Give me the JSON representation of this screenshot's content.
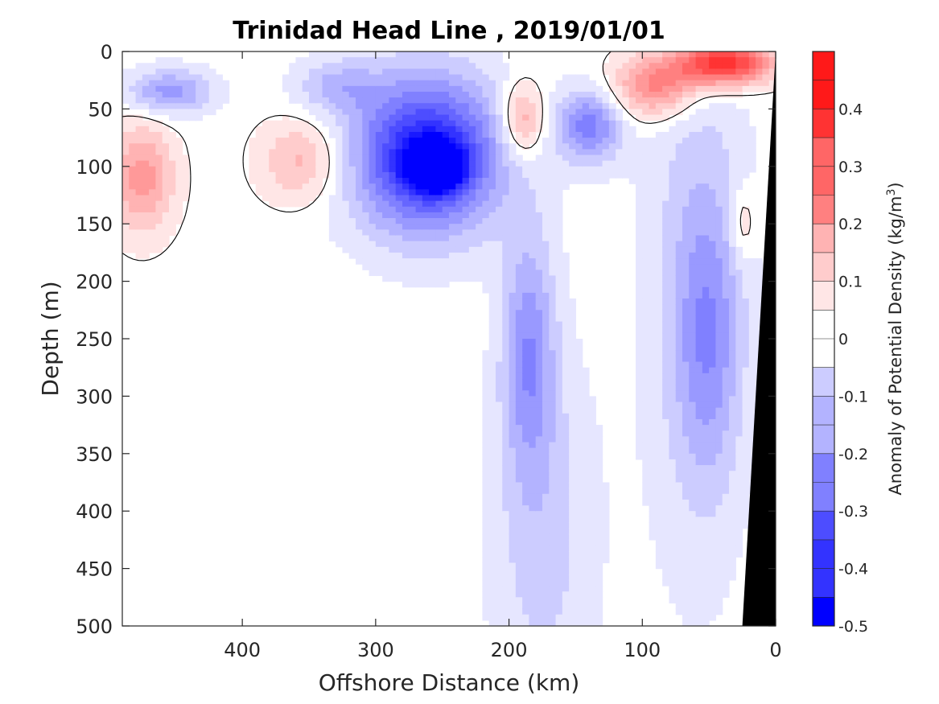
{
  "chart_data": {
    "type": "heatmap",
    "title": "Trinidad Head Line , 2019/01/01",
    "xlabel": "Offshore Distance (km)",
    "ylabel": "Depth (m)",
    "xlim": [
      490,
      0
    ],
    "ylim": [
      0,
      500
    ],
    "x_reversed": true,
    "y_reversed": true,
    "x_ticks": [
      400,
      300,
      200,
      100,
      0
    ],
    "y_ticks": [
      0,
      50,
      100,
      150,
      200,
      250,
      300,
      350,
      400,
      450,
      500
    ],
    "x_tick_labels": [
      "400",
      "300",
      "200",
      "100",
      "0"
    ],
    "y_tick_labels": [
      "0",
      "50",
      "100",
      "150",
      "200",
      "250",
      "300",
      "350",
      "400",
      "450",
      "500"
    ],
    "colorbar": {
      "label": "Anomaly of Potential Density (kg/m³)",
      "label_main": "Anomaly of Potential Density (kg/m",
      "label_sup": "3",
      "label_close": ")",
      "range": [
        -0.5,
        0.5
      ],
      "step": 0.05,
      "tick_values": [
        0.4,
        0.3,
        0.2,
        0.1,
        0,
        -0.1,
        -0.2,
        -0.3,
        -0.4,
        -0.5
      ],
      "tick_labels": [
        "0.4",
        "0.3",
        "0.2",
        "0.1",
        "0",
        "-0.1",
        "-0.2",
        "-0.3",
        "-0.4",
        "-0.5"
      ],
      "low_color": "#0000ff",
      "mid_color": "#ffffff",
      "high_color": "#ff0000"
    },
    "zero_contour": true,
    "bathymetry_color": "#000000",
    "bathymetry": [
      [
        0,
        0
      ],
      [
        25,
        500
      ],
      [
        0,
        500
      ]
    ],
    "anomaly_features": [
      {
        "x": 262,
        "y": 90,
        "value": -0.45,
        "rx": 70,
        "ry": 85
      },
      {
        "x": 255,
        "y": 100,
        "value": -0.48,
        "rx": 25,
        "ry": 25
      },
      {
        "x": 330,
        "y": 30,
        "value": -0.12,
        "rx": 40,
        "ry": 30
      },
      {
        "x": 455,
        "y": 35,
        "value": -0.2,
        "rx": 40,
        "ry": 25
      },
      {
        "x": 140,
        "y": 65,
        "value": -0.25,
        "rx": 30,
        "ry": 40
      },
      {
        "x": 185,
        "y": 260,
        "value": -0.2,
        "rx": 25,
        "ry": 130
      },
      {
        "x": 175,
        "y": 420,
        "value": -0.1,
        "rx": 50,
        "ry": 200
      },
      {
        "x": 50,
        "y": 250,
        "value": -0.15,
        "rx": 30,
        "ry": 150
      },
      {
        "x": 60,
        "y": 200,
        "value": -0.1,
        "rx": 50,
        "ry": 320
      },
      {
        "x": 475,
        "y": 110,
        "value": 0.2,
        "rx": 30,
        "ry": 60
      },
      {
        "x": 355,
        "y": 95,
        "value": 0.15,
        "rx": 40,
        "ry": 45
      },
      {
        "x": 190,
        "y": 60,
        "value": 0.2,
        "rx": 20,
        "ry": 40
      },
      {
        "x": 40,
        "y": 10,
        "value": 0.45,
        "rx": 45,
        "ry": 25
      },
      {
        "x": 90,
        "y": 30,
        "value": 0.25,
        "rx": 40,
        "ry": 35
      },
      {
        "x": 25,
        "y": 150,
        "value": 0.1,
        "rx": 12,
        "ry": 40
      }
    ]
  }
}
